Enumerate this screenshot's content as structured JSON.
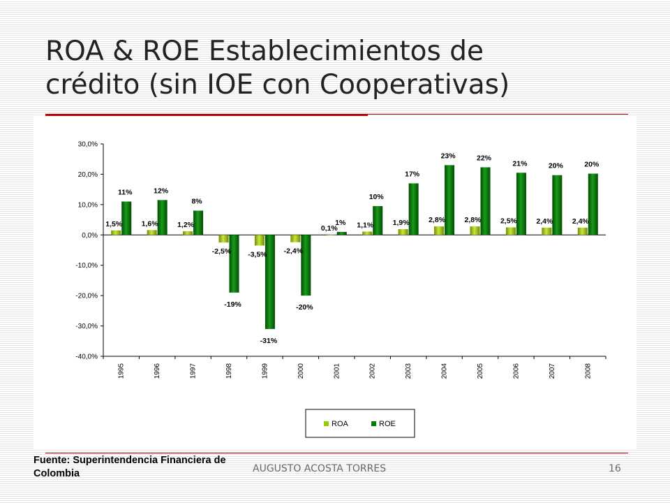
{
  "slide": {
    "title_line1": "ROA & ROE Establecimientos de",
    "title_line2": "crédito (sin IOE con Cooperativas)",
    "source_line1": "Fuente: Superintendencia Financiera de",
    "source_line2": "Colombia",
    "footer_author": "AUGUSTO ACOSTA TORRES",
    "page_number": "16",
    "accent_color": "#c00000"
  },
  "chart_data": {
    "type": "bar",
    "categories": [
      "1995",
      "1996",
      "1997",
      "1998",
      "1999",
      "2000",
      "2001",
      "2002",
      "2003",
      "2004",
      "2005",
      "2006",
      "2007",
      "2008"
    ],
    "ylim": [
      -40,
      30
    ],
    "yticks": [
      "30,0%",
      "20,0%",
      "10,0%",
      "0,0%",
      "-10,0%",
      "-20,0%",
      "-30,0%",
      "-40,0%"
    ],
    "ytick_values": [
      30,
      20,
      10,
      0,
      -10,
      -20,
      -30,
      -40
    ],
    "legend_position": "bottom",
    "series": [
      {
        "name": "ROA",
        "color": "#99cc00",
        "values": [
          1.5,
          1.6,
          1.2,
          -2.5,
          -3.5,
          -2.4,
          0.1,
          1.1,
          1.9,
          2.8,
          2.8,
          2.5,
          2.4,
          2.4
        ],
        "labels": [
          "1,5%",
          "1,6%",
          "1,2%",
          "-2,5%",
          "-3,5%",
          "-2,4%",
          "0,1%",
          "1,1%",
          "1,9%",
          "2,8%",
          "2,8%",
          "2,5%",
          "2,4%",
          "2,4%"
        ]
      },
      {
        "name": "ROE",
        "color": "#008000",
        "values": [
          11,
          11.5,
          8,
          -19,
          -31,
          -20,
          1,
          9.5,
          17,
          23,
          22.3,
          20.5,
          19.7,
          20.2
        ],
        "labels": [
          "11%",
          "12%",
          "8%",
          "-19%",
          "-31%",
          "-20%",
          "1%",
          "10%",
          "17%",
          "23%",
          "22%",
          "21%",
          "20%",
          "20%"
        ]
      }
    ]
  }
}
